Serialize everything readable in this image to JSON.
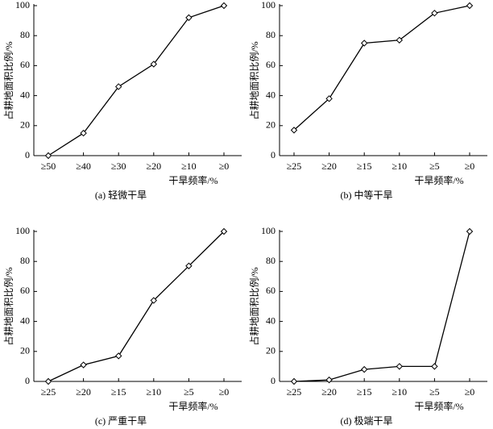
{
  "chart_data": [
    {
      "type": "line",
      "caption": "(a) 轻微干旱",
      "xlabel": "干旱频率/%",
      "ylabel": "占耕地面积比例/%",
      "categories": [
        "≥50",
        "≥40",
        "≥30",
        "≥20",
        "≥10",
        "≥0"
      ],
      "values": [
        0,
        15,
        46,
        61,
        92,
        100
      ],
      "color": "#000000",
      "ylim": [
        0,
        100
      ],
      "yticks": [
        0,
        20,
        40,
        60,
        80,
        100
      ]
    },
    {
      "type": "line",
      "caption": "(b) 中等干旱",
      "xlabel": "干旱频率/%",
      "ylabel": "占耕地面积比例/%",
      "categories": [
        "≥25",
        "≥20",
        "≥15",
        "≥10",
        "≥5",
        "≥0"
      ],
      "values": [
        17,
        38,
        75,
        77,
        95,
        100
      ],
      "color": "#000000",
      "ylim": [
        0,
        100
      ],
      "yticks": [
        0,
        20,
        40,
        60,
        80,
        100
      ]
    },
    {
      "type": "line",
      "caption": "(c) 严重干旱",
      "xlabel": "干旱频率/%",
      "ylabel": "占耕地面积比例/%",
      "categories": [
        "≥25",
        "≥20",
        "≥15",
        "≥10",
        "≥5",
        "≥0"
      ],
      "values": [
        0,
        11,
        17,
        54,
        77,
        100
      ],
      "color": "#000000",
      "ylim": [
        0,
        100
      ],
      "yticks": [
        0,
        20,
        40,
        60,
        80,
        100
      ]
    },
    {
      "type": "line",
      "caption": "(d) 极端干旱",
      "xlabel": "干旱频率/%",
      "ylabel": "占耕地面积比例/%",
      "categories": [
        "≥25",
        "≥20",
        "≥15",
        "≥10",
        "≥5",
        "≥0"
      ],
      "values": [
        0,
        1,
        8,
        10,
        10,
        100
      ],
      "color": "#000000",
      "ylim": [
        0,
        100
      ],
      "yticks": [
        0,
        20,
        40,
        60,
        80,
        100
      ]
    }
  ]
}
